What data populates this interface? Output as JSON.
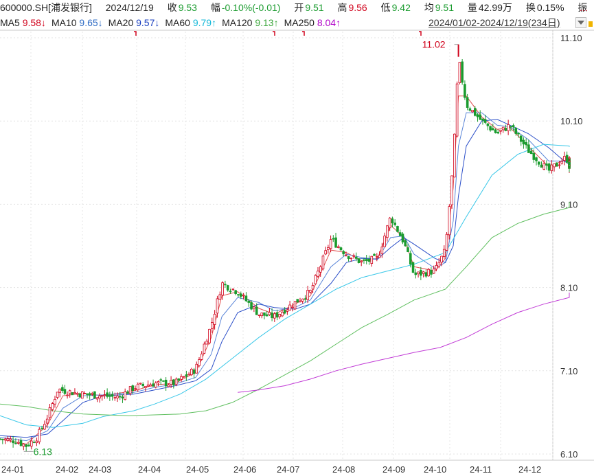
{
  "header": {
    "symbol": "600000.SH[浦发银行]",
    "date": "2024/12/19",
    "close_label": "收",
    "close": "9.53",
    "change_label": "幅",
    "change": "-0.10%(-0.01)",
    "open_label": "开",
    "open": "9.51",
    "high_label": "高",
    "high": "9.56",
    "low_label": "低",
    "low": "9.42",
    "avg_label": "均",
    "avg": "9.51",
    "volume_label": "量",
    "volume": "42.99万",
    "turnover_label": "换",
    "turnover": "0.15%",
    "amplitude_label": "振",
    "more": "...",
    "up_color": "#d0021b",
    "down_color": "#1a9b2e"
  },
  "ma_legend": [
    {
      "name": "MA5",
      "value": "9.58↓",
      "color": "#d0021b"
    },
    {
      "name": "MA10",
      "value": "9.65↓",
      "color": "#2f6cc4"
    },
    {
      "name": "MA20",
      "value": "9.57↓",
      "color": "#1a3fbf"
    },
    {
      "name": "MA60",
      "value": "9.79↑",
      "color": "#14b8d8"
    },
    {
      "name": "MA120",
      "value": "9.13↑",
      "color": "#3aa63a"
    },
    {
      "name": "MA250",
      "value": "8.04↑",
      "color": "#b000c8"
    }
  ],
  "range_label": "2024/01/02-2024/12/19(234日)",
  "chart_data": {
    "type": "candlestick",
    "x_ticks": [
      "24-01",
      "24-02",
      "24-03",
      "24-04",
      "24-05",
      "24-06",
      "24-07",
      "24-08",
      "24-09",
      "24-10",
      "24-11",
      "24-12"
    ],
    "y_ticks": [
      "6.10",
      "7.10",
      "8.10",
      "9.10",
      "10.10",
      "11.10"
    ],
    "ylim": [
      6.1,
      11.1
    ],
    "grid": true,
    "annotations": [
      {
        "label": "11.02",
        "kind": "max",
        "month_index": 8.85
      },
      {
        "label": "6.13",
        "kind": "min",
        "month_index": 0.45
      }
    ],
    "close_path": [
      [
        0,
        6.28
      ],
      [
        0.3,
        6.26
      ],
      [
        0.5,
        6.2
      ],
      [
        0.7,
        6.3
      ],
      [
        0.9,
        6.55
      ],
      [
        1.1,
        6.88
      ],
      [
        1.3,
        6.85
      ],
      [
        1.6,
        6.82
      ],
      [
        2.0,
        6.8
      ],
      [
        2.3,
        6.78
      ],
      [
        2.6,
        6.9
      ],
      [
        3.0,
        6.95
      ],
      [
        3.4,
        6.95
      ],
      [
        3.8,
        7.12
      ],
      [
        4.1,
        7.65
      ],
      [
        4.3,
        8.15
      ],
      [
        4.6,
        8.05
      ],
      [
        5.0,
        7.78
      ],
      [
        5.3,
        7.75
      ],
      [
        5.7,
        7.92
      ],
      [
        6.0,
        8.05
      ],
      [
        6.4,
        8.68
      ],
      [
        6.7,
        8.5
      ],
      [
        7.0,
        8.4
      ],
      [
        7.3,
        8.45
      ],
      [
        7.55,
        8.95
      ],
      [
        7.8,
        8.65
      ],
      [
        8.0,
        8.25
      ],
      [
        8.4,
        8.3
      ],
      [
        8.6,
        8.55
      ],
      [
        8.75,
        9.6
      ],
      [
        8.85,
        10.85
      ],
      [
        9.0,
        10.3
      ],
      [
        9.3,
        10.1
      ],
      [
        9.6,
        9.95
      ],
      [
        9.85,
        10.05
      ],
      [
        10.2,
        9.75
      ],
      [
        10.6,
        9.5
      ],
      [
        10.9,
        9.65
      ],
      [
        11.3,
        9.58
      ],
      [
        11.55,
        9.53
      ]
    ],
    "series": [
      {
        "name": "MA5",
        "values": [
          [
            0,
            6.28
          ],
          [
            0.5,
            6.22
          ],
          [
            0.9,
            6.45
          ],
          [
            1.2,
            6.8
          ],
          [
            1.6,
            6.83
          ],
          [
            2.0,
            6.8
          ],
          [
            2.6,
            6.86
          ],
          [
            3.0,
            6.93
          ],
          [
            3.4,
            6.95
          ],
          [
            3.8,
            7.08
          ],
          [
            4.1,
            7.5
          ],
          [
            4.3,
            8.0
          ],
          [
            4.6,
            8.05
          ],
          [
            5.0,
            7.85
          ],
          [
            5.3,
            7.78
          ],
          [
            5.7,
            7.9
          ],
          [
            6.0,
            8.0
          ],
          [
            6.4,
            8.55
          ],
          [
            6.7,
            8.52
          ],
          [
            7.0,
            8.42
          ],
          [
            7.3,
            8.45
          ],
          [
            7.55,
            8.85
          ],
          [
            7.8,
            8.7
          ],
          [
            8.0,
            8.35
          ],
          [
            8.4,
            8.3
          ],
          [
            8.6,
            8.45
          ],
          [
            8.75,
            9.3
          ],
          [
            8.85,
            10.4
          ],
          [
            9.0,
            10.4
          ],
          [
            9.3,
            10.15
          ],
          [
            9.6,
            10.0
          ],
          [
            9.85,
            10.02
          ],
          [
            10.2,
            9.8
          ],
          [
            10.6,
            9.55
          ],
          [
            10.9,
            9.63
          ],
          [
            11.3,
            9.6
          ],
          [
            11.55,
            9.58
          ]
        ]
      },
      {
        "name": "MA10",
        "values": [
          [
            0,
            6.3
          ],
          [
            0.5,
            6.26
          ],
          [
            0.9,
            6.38
          ],
          [
            1.2,
            6.65
          ],
          [
            1.6,
            6.8
          ],
          [
            2.0,
            6.81
          ],
          [
            2.6,
            6.84
          ],
          [
            3.0,
            6.9
          ],
          [
            3.4,
            6.94
          ],
          [
            3.8,
            7.02
          ],
          [
            4.1,
            7.3
          ],
          [
            4.3,
            7.75
          ],
          [
            4.6,
            7.98
          ],
          [
            5.0,
            7.92
          ],
          [
            5.3,
            7.82
          ],
          [
            5.7,
            7.86
          ],
          [
            6.0,
            7.95
          ],
          [
            6.4,
            8.35
          ],
          [
            6.7,
            8.5
          ],
          [
            7.0,
            8.46
          ],
          [
            7.3,
            8.44
          ],
          [
            7.55,
            8.7
          ],
          [
            7.8,
            8.72
          ],
          [
            8.0,
            8.5
          ],
          [
            8.4,
            8.33
          ],
          [
            8.6,
            8.4
          ],
          [
            8.75,
            8.9
          ],
          [
            8.85,
            9.8
          ],
          [
            9.0,
            10.2
          ],
          [
            9.3,
            10.2
          ],
          [
            9.6,
            10.05
          ],
          [
            9.85,
            10.03
          ],
          [
            10.2,
            9.88
          ],
          [
            10.6,
            9.62
          ],
          [
            10.9,
            9.62
          ],
          [
            11.3,
            9.63
          ],
          [
            11.55,
            9.65
          ]
        ]
      },
      {
        "name": "MA20",
        "values": [
          [
            0,
            6.32
          ],
          [
            0.5,
            6.3
          ],
          [
            0.9,
            6.34
          ],
          [
            1.2,
            6.5
          ],
          [
            1.6,
            6.72
          ],
          [
            2.0,
            6.8
          ],
          [
            2.6,
            6.82
          ],
          [
            3.0,
            6.87
          ],
          [
            3.4,
            6.92
          ],
          [
            3.8,
            6.98
          ],
          [
            4.1,
            7.12
          ],
          [
            4.3,
            7.45
          ],
          [
            4.6,
            7.8
          ],
          [
            5.0,
            7.9
          ],
          [
            5.3,
            7.86
          ],
          [
            5.7,
            7.84
          ],
          [
            6.0,
            7.9
          ],
          [
            6.4,
            8.15
          ],
          [
            6.7,
            8.4
          ],
          [
            7.0,
            8.45
          ],
          [
            7.3,
            8.44
          ],
          [
            7.55,
            8.58
          ],
          [
            7.8,
            8.7
          ],
          [
            8.0,
            8.62
          ],
          [
            8.4,
            8.45
          ],
          [
            8.6,
            8.4
          ],
          [
            8.75,
            8.6
          ],
          [
            8.85,
            9.2
          ],
          [
            9.0,
            9.8
          ],
          [
            9.3,
            10.1
          ],
          [
            9.6,
            10.12
          ],
          [
            9.85,
            10.05
          ],
          [
            10.2,
            9.95
          ],
          [
            10.6,
            9.78
          ],
          [
            10.9,
            9.62
          ],
          [
            11.3,
            9.58
          ],
          [
            11.55,
            9.57
          ]
        ]
      },
      {
        "name": "MA60",
        "values": [
          [
            0,
            6.56
          ],
          [
            0.5,
            6.45
          ],
          [
            1.0,
            6.42
          ],
          [
            1.6,
            6.47
          ],
          [
            2.0,
            6.55
          ],
          [
            2.6,
            6.62
          ],
          [
            3.0,
            6.7
          ],
          [
            3.5,
            6.82
          ],
          [
            4.0,
            7.0
          ],
          [
            4.5,
            7.25
          ],
          [
            5.0,
            7.5
          ],
          [
            5.5,
            7.72
          ],
          [
            6.0,
            7.9
          ],
          [
            6.5,
            8.08
          ],
          [
            7.0,
            8.22
          ],
          [
            7.5,
            8.3
          ],
          [
            8.0,
            8.38
          ],
          [
            8.6,
            8.52
          ],
          [
            9.0,
            8.95
          ],
          [
            9.5,
            9.45
          ],
          [
            10.0,
            9.7
          ],
          [
            10.5,
            9.82
          ],
          [
            11.0,
            9.8
          ],
          [
            11.55,
            9.79
          ]
        ]
      },
      {
        "name": "MA120",
        "values": [
          [
            0,
            6.7
          ],
          [
            0.5,
            6.67
          ],
          [
            1.0,
            6.62
          ],
          [
            1.6,
            6.58
          ],
          [
            2.5,
            6.56
          ],
          [
            3.5,
            6.58
          ],
          [
            4.0,
            6.62
          ],
          [
            4.5,
            6.72
          ],
          [
            5.0,
            6.88
          ],
          [
            5.5,
            7.05
          ],
          [
            6.0,
            7.22
          ],
          [
            6.5,
            7.42
          ],
          [
            7.0,
            7.62
          ],
          [
            7.5,
            7.78
          ],
          [
            8.0,
            7.95
          ],
          [
            8.6,
            8.08
          ],
          [
            9.0,
            8.35
          ],
          [
            9.5,
            8.7
          ],
          [
            10.0,
            8.87
          ],
          [
            10.5,
            8.98
          ],
          [
            11.0,
            9.06
          ],
          [
            11.55,
            9.13
          ]
        ]
      },
      {
        "name": "MA250",
        "values": [
          [
            4.6,
            6.84
          ],
          [
            5.0,
            6.87
          ],
          [
            5.5,
            6.92
          ],
          [
            6.0,
            7.0
          ],
          [
            6.5,
            7.1
          ],
          [
            7.0,
            7.18
          ],
          [
            7.5,
            7.25
          ],
          [
            8.0,
            7.32
          ],
          [
            8.5,
            7.38
          ],
          [
            9.0,
            7.5
          ],
          [
            9.5,
            7.66
          ],
          [
            10.0,
            7.8
          ],
          [
            10.5,
            7.9
          ],
          [
            11.0,
            7.98
          ],
          [
            11.55,
            8.04
          ]
        ]
      }
    ]
  }
}
